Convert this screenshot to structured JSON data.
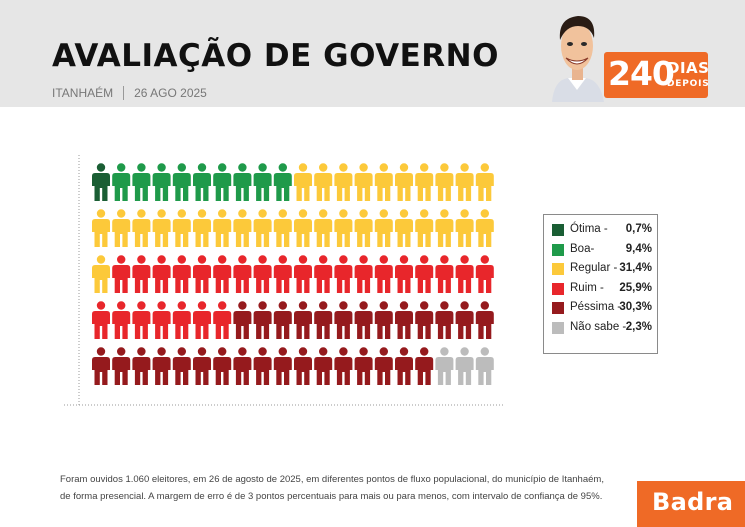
{
  "header": {
    "title": "AVALIAÇÃO DE GOVERNO",
    "location": "ITANHAÉM",
    "date": "26 AGO 2025",
    "badge_number": "240",
    "badge_line1": "DIAS",
    "badge_line2": "DEPOIS"
  },
  "chart_data": {
    "type": "pictogram",
    "grid": {
      "rows": 5,
      "cols": 20
    },
    "series": [
      {
        "name": "Ótima",
        "value": 0.7,
        "icons": 1,
        "color": "#1a5e34"
      },
      {
        "name": "Boa",
        "value": 9.4,
        "icons": 9,
        "color": "#1f9a4a"
      },
      {
        "name": "Regular",
        "value": 31.4,
        "icons": 31,
        "color": "#fcc93a"
      },
      {
        "name": "Ruim",
        "value": 25.9,
        "icons": 26,
        "color": "#e8262b"
      },
      {
        "name": "Péssima",
        "value": 30.3,
        "icons": 30,
        "color": "#951a1d"
      },
      {
        "name": "Não sabe",
        "value": 2.3,
        "icons": 3,
        "color": "#bcbcbc"
      }
    ]
  },
  "legend": [
    {
      "label": "Ótima -",
      "value": "0,7%"
    },
    {
      "label": "Boa-",
      "value": "9,4%"
    },
    {
      "label": "Regular -",
      "value": "31,4%"
    },
    {
      "label": "Ruim -",
      "value": "25,9%"
    },
    {
      "label": "Péssima -",
      "value": "30,3%"
    },
    {
      "label": "Não sabe -",
      "value": "2,3%"
    }
  ],
  "footnote": {
    "line1": "Foram ouvidos 1.060 eleitores, em 26 de agosto de 2025, em diferentes pontos de fluxo populacional, do município de Itanhaém,",
    "line2": "de forma presencial. A margem de erro é de 3 pontos percentuais para mais ou para menos, com intervalo de confiança de 95%."
  },
  "logo_text": "Badra"
}
